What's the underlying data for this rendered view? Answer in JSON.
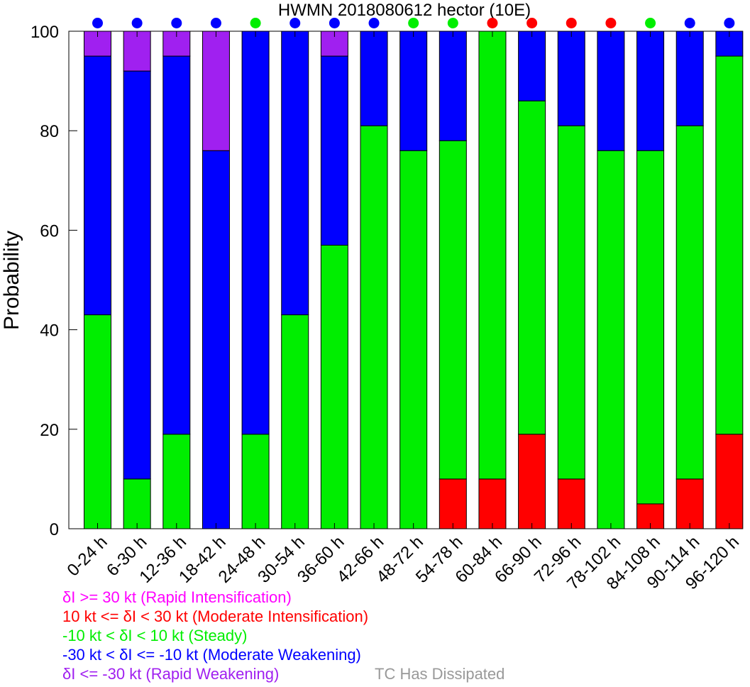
{
  "chart_data": {
    "type": "bar",
    "stacked": true,
    "title": "HWMN 2018080612 hector (10E)",
    "ylabel": "Probability",
    "xlabel": "",
    "ylim": [
      0,
      100
    ],
    "yticks": [
      0,
      20,
      40,
      60,
      80,
      100
    ],
    "grid": false,
    "categories": [
      "0-24 h",
      "6-30 h",
      "12-36 h",
      "18-42 h",
      "24-48 h",
      "30-54 h",
      "36-60 h",
      "42-66 h",
      "48-72 h",
      "54-78 h",
      "60-84 h",
      "66-90 h",
      "72-96 h",
      "78-102 h",
      "84-108 h",
      "90-114 h",
      "96-120 h"
    ],
    "series": [
      {
        "key": "ri",
        "color": "#ff00ff",
        "values": [
          0,
          0,
          0,
          0,
          0,
          0,
          0,
          0,
          0,
          0,
          0,
          0,
          0,
          0,
          0,
          0,
          0
        ]
      },
      {
        "key": "mi",
        "color": "#ff0000",
        "values": [
          0,
          0,
          0,
          0,
          0,
          0,
          0,
          0,
          0,
          10,
          10,
          19,
          10,
          0,
          5,
          10,
          19
        ]
      },
      {
        "key": "st",
        "color": "#00ee00",
        "values": [
          43,
          10,
          19,
          0,
          19,
          43,
          57,
          81,
          76,
          68,
          90,
          67,
          71,
          76,
          71,
          71,
          76
        ]
      },
      {
        "key": "mw",
        "color": "#0000ff",
        "values": [
          52,
          82,
          76,
          76,
          81,
          57,
          38,
          19,
          24,
          22,
          0,
          14,
          19,
          24,
          24,
          19,
          5
        ]
      },
      {
        "key": "rw",
        "color": "#a020f0",
        "values": [
          5,
          8,
          5,
          24,
          0,
          0,
          5,
          0,
          0,
          0,
          0,
          0,
          0,
          0,
          0,
          0,
          0
        ]
      }
    ],
    "top_markers": [
      "mw",
      "mw",
      "mw",
      "mw",
      "st",
      "mw",
      "mw",
      "mw",
      "st",
      "st",
      "mi",
      "mi",
      "mi",
      "mi",
      "st",
      "mw",
      "mw"
    ]
  },
  "legend": {
    "rapid_intensification": {
      "text": "δI >= 30 kt (Rapid Intensification)",
      "color": "#ff00ff"
    },
    "moderate_intensification": {
      "text": "10 kt <= δI < 30 kt (Moderate Intensification)",
      "color": "#ff0000"
    },
    "steady": {
      "text": "-10 kt < δI < 10 kt (Steady)",
      "color": "#00ee00"
    },
    "moderate_weakening": {
      "text": "-30 kt < δI <= -10 kt (Moderate Weakening)",
      "color": "#0000ff"
    },
    "rapid_weakening": {
      "text": "δI <= -30 kt (Rapid Weakening)",
      "color": "#a020f0"
    },
    "dissipated": {
      "text": "TC Has Dissipated",
      "color": "#999999"
    }
  }
}
